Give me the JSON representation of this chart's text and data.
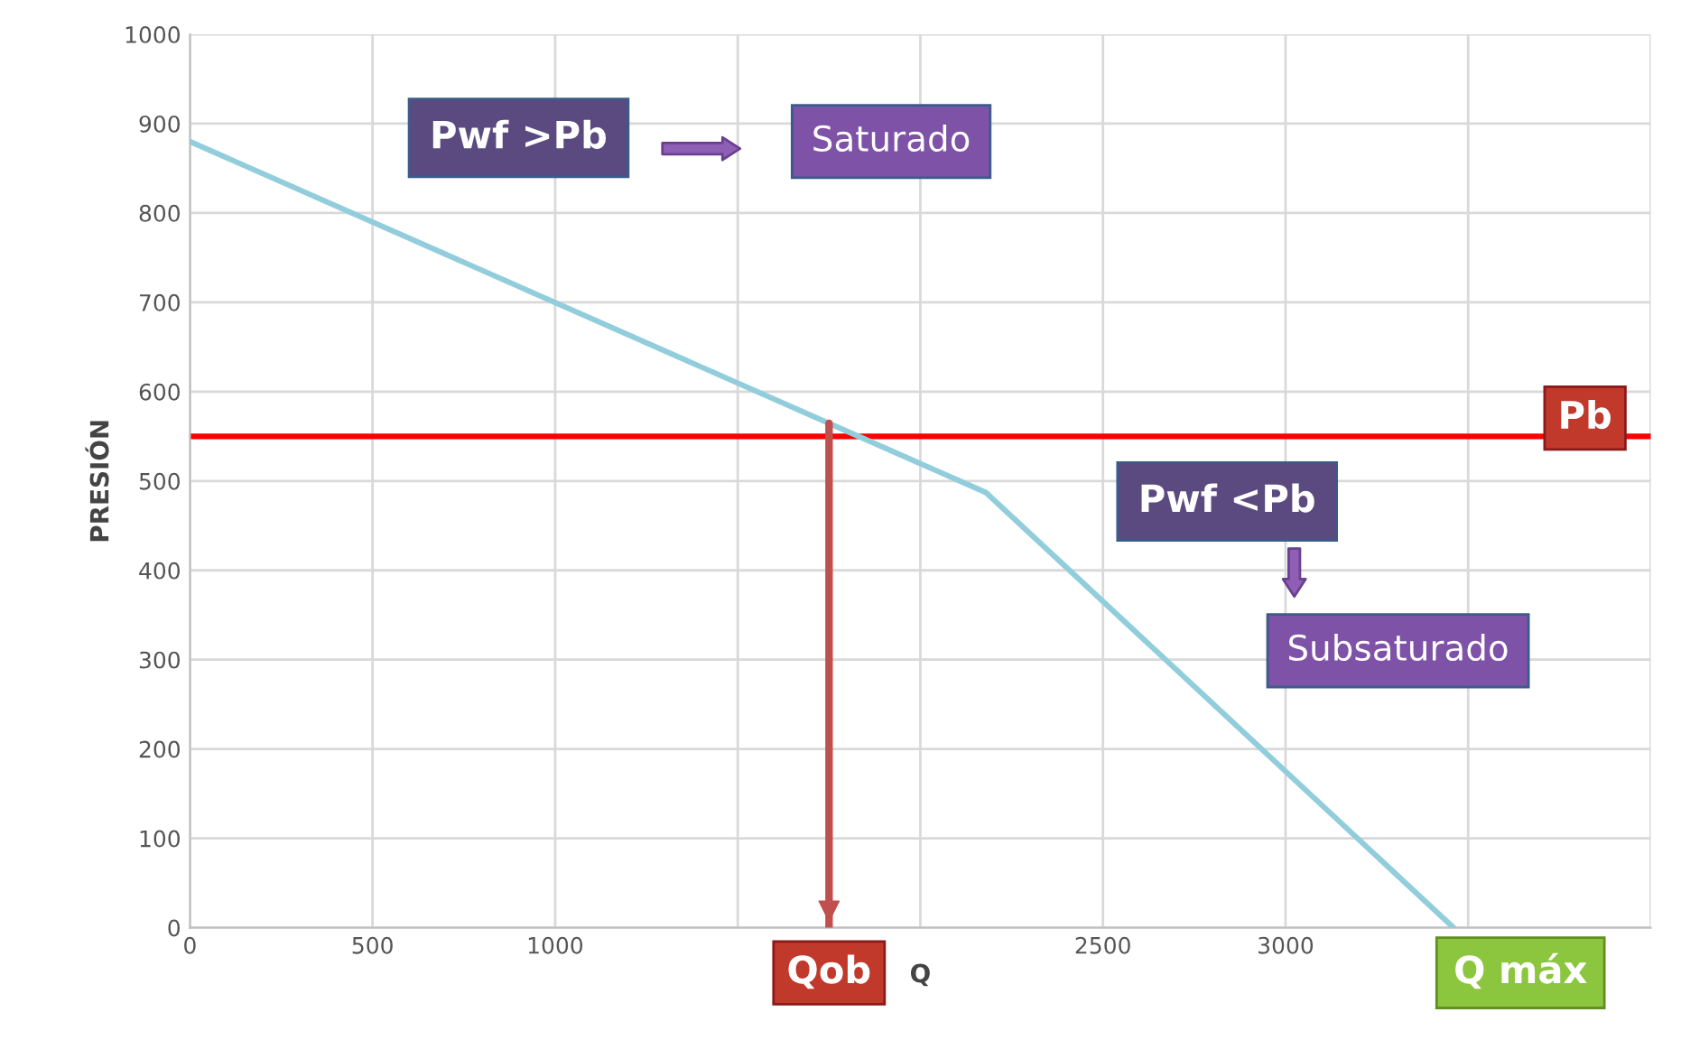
{
  "chart_data": {
    "type": "line",
    "xlabel": "Q",
    "ylabel": "PRESIÓN",
    "x": [
      0,
      2180,
      3460
    ],
    "series": [
      {
        "color": "#92cddc",
        "values": [
          880,
          487,
          0
        ]
      }
    ],
    "xlim": [
      0,
      4000
    ],
    "ylim": [
      0,
      1000
    ],
    "xticks": [
      0,
      500,
      1000,
      {
        "value": 1500,
        "label": null
      },
      {
        "value": 2000,
        "label": null
      },
      2500,
      3000,
      {
        "value": 3500,
        "label": null
      },
      {
        "value": 4000,
        "label": null
      }
    ],
    "yticks": [
      0,
      100,
      200,
      300,
      400,
      500,
      600,
      700,
      800,
      900,
      1000
    ],
    "grid": true,
    "legend": false,
    "marker": "none",
    "line_style": "solid",
    "ref_lines": [
      {
        "axis": "y",
        "value": 550,
        "label": "Pb",
        "color": "#ff0000"
      },
      {
        "axis": "x",
        "value": 1750,
        "label": "Qob",
        "color": "#c0504d"
      }
    ],
    "annotations": [
      "Pwf >Pb",
      "Saturado",
      "Pwf <Pb",
      "Subsaturado",
      {
        "text": "Q máx",
        "x": 3460,
        "y": 0
      }
    ]
  }
}
